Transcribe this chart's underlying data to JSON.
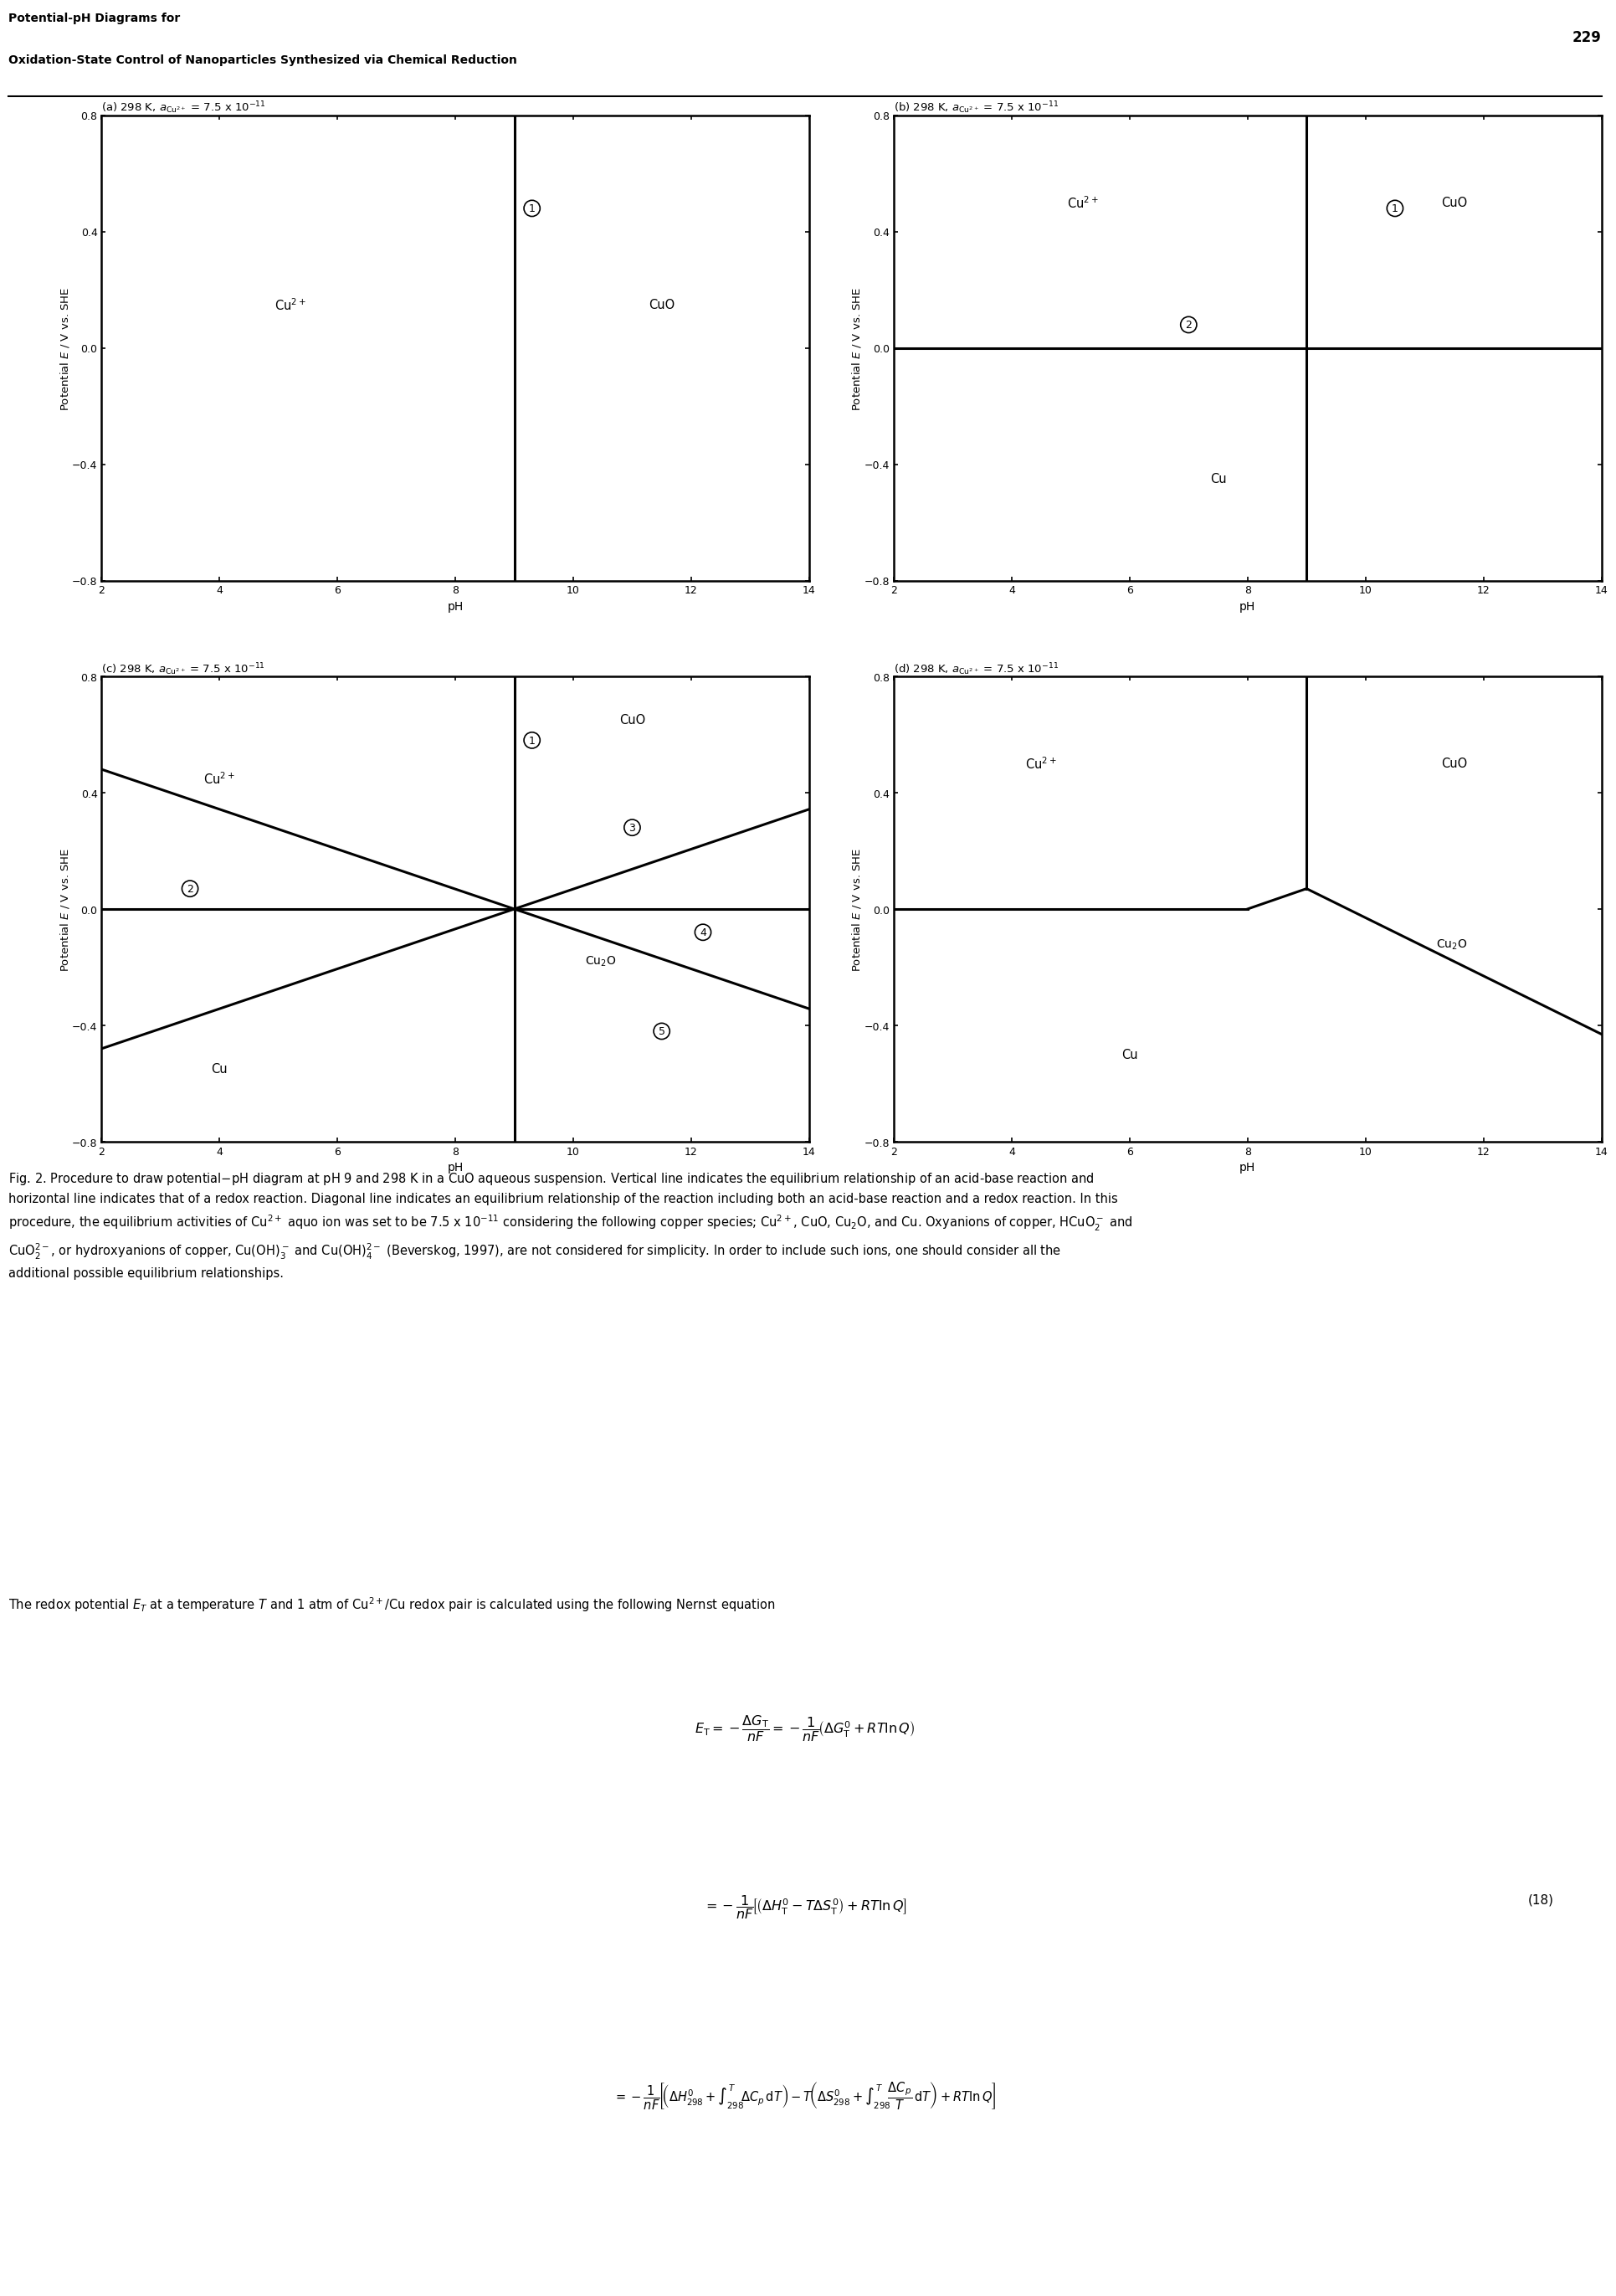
{
  "header_line1": "Potential-pH Diagrams for",
  "header_line2": "Oxidation-State Control of Nanoparticles Synthesized via Chemical Reduction",
  "page_number": "229",
  "xlim": [
    2,
    14
  ],
  "ylim": [
    -0.8,
    0.8
  ],
  "xticks": [
    2,
    4,
    6,
    8,
    10,
    12,
    14
  ],
  "yticks": [
    -0.8,
    -0.4,
    0,
    0.4,
    0.8
  ],
  "xlabel": "pH",
  "ylabel": "Potential $E$ / V vs. SHE",
  "pH_vertical": 9.0,
  "line_color": "#000000",
  "line_width": 2.2,
  "tick_fontsize": 9,
  "label_fontsize": 10,
  "title_fontsize": 9.5
}
